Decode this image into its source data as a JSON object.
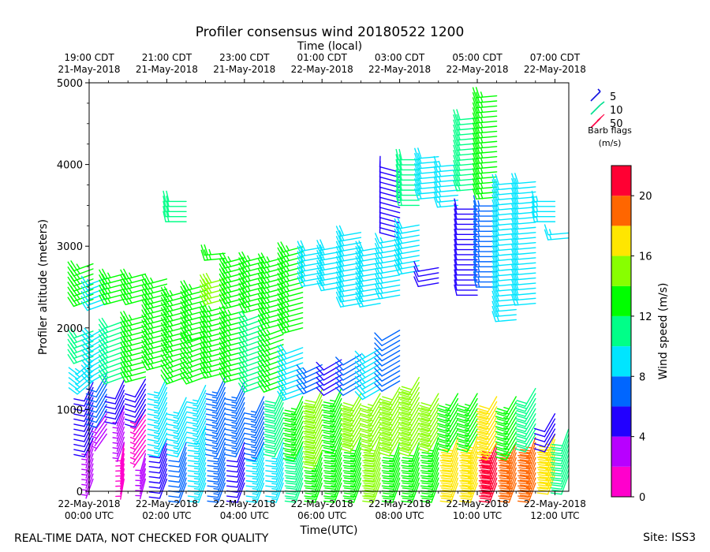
{
  "page": {
    "title": "Profiler consensus wind 20180522 1200",
    "footer_left": "REAL-TIME DATA, NOT CHECKED FOR QUALITY",
    "footer_right": "Site: ISS3"
  },
  "chart_data": {
    "type": "wind-barb",
    "title": "Profiler consensus wind 20180522 1200",
    "xlabel": "Time(UTC)",
    "x2label": "Time (local)",
    "ylabel": "Profiler altitude (meters)",
    "xlim": [
      0,
      12.4
    ],
    "ylim": [
      0,
      5000
    ],
    "y_ticks": [
      0,
      1000,
      2000,
      3000,
      4000,
      5000
    ],
    "x_ticks": [
      {
        "hour": 0,
        "line1": "22-May-2018",
        "line2": "00:00 UTC"
      },
      {
        "hour": 2,
        "line1": "22-May-2018",
        "line2": "02:00 UTC"
      },
      {
        "hour": 4,
        "line1": "22-May-2018",
        "line2": "04:00 UTC"
      },
      {
        "hour": 6,
        "line1": "22-May-2018",
        "line2": "06:00 UTC"
      },
      {
        "hour": 8,
        "line1": "22-May-2018",
        "line2": "08:00 UTC"
      },
      {
        "hour": 10,
        "line1": "22-May-2018",
        "line2": "10:00 UTC"
      },
      {
        "hour": 12,
        "line1": "22-May-2018",
        "line2": "12:00 UTC"
      }
    ],
    "x2_ticks": [
      {
        "hour": 0,
        "line1": "19:00 CDT",
        "line2": "21-May-2018"
      },
      {
        "hour": 2,
        "line1": "21:00 CDT",
        "line2": "21-May-2018"
      },
      {
        "hour": 4,
        "line1": "23:00 CDT",
        "line2": "21-May-2018"
      },
      {
        "hour": 6,
        "line1": "01:00 CDT",
        "line2": "22-May-2018"
      },
      {
        "hour": 8,
        "line1": "03:00 CDT",
        "line2": "22-May-2018"
      },
      {
        "hour": 10,
        "line1": "05:00 CDT",
        "line2": "22-May-2018"
      },
      {
        "hour": 12,
        "line1": "07:00 CDT",
        "line2": "22-May-2018"
      }
    ],
    "barb_legend": {
      "entries": [
        {
          "label": "5",
          "color": "#1010e0"
        },
        {
          "label": "10",
          "color": "#00e090"
        },
        {
          "label": "50",
          "color": "#ff0044"
        }
      ],
      "title_line1": "Barb flags",
      "title_line2": "(m/s)"
    },
    "colorbar": {
      "label": "Wind speed (m/s)",
      "range": [
        0,
        22
      ],
      "ticks": [
        0,
        4,
        8,
        12,
        16,
        20
      ],
      "bands": [
        {
          "from": 0,
          "to": 2,
          "color": "#ff00cc"
        },
        {
          "from": 2,
          "to": 4,
          "color": "#b800ff"
        },
        {
          "from": 4,
          "to": 6,
          "color": "#2200ff"
        },
        {
          "from": 6,
          "to": 8,
          "color": "#0066ff"
        },
        {
          "from": 8,
          "to": 10,
          "color": "#00e5ff"
        },
        {
          "from": 10,
          "to": 12,
          "color": "#00ff88"
        },
        {
          "from": 12,
          "to": 14,
          "color": "#00ff00"
        },
        {
          "from": 14,
          "to": 16,
          "color": "#88ff00"
        },
        {
          "from": 16,
          "to": 18,
          "color": "#ffe600"
        },
        {
          "from": 18,
          "to": 20,
          "color": "#ff6600"
        },
        {
          "from": 20,
          "to": 22,
          "color": "#ff0033"
        }
      ]
    },
    "profiles": [
      {
        "hour": 0.1,
        "layers": [
          {
            "from": 150,
            "to": 650,
            "speed": 3.2,
            "dir": 200
          },
          {
            "from": 650,
            "to": 1350,
            "speed": 5.2,
            "dir": 205
          },
          {
            "from": 1350,
            "to": 1650,
            "speed": 8.5,
            "dir": 230
          },
          {
            "from": 1650,
            "to": 2000,
            "speed": 10.5,
            "dir": 250
          },
          {
            "from": 2350,
            "to": 2800,
            "speed": 13,
            "dir": 250
          }
        ]
      },
      {
        "hour": 0.45,
        "layers": [
          {
            "from": 700,
            "to": 1000,
            "speed": 3,
            "dir": 215
          },
          {
            "from": 1000,
            "to": 1450,
            "speed": 6,
            "dir": 210
          },
          {
            "from": 1450,
            "to": 2050,
            "speed": 9.5,
            "dir": 240
          },
          {
            "from": 2300,
            "to": 2650,
            "speed": 8.6,
            "dir": 250
          }
        ]
      },
      {
        "hour": 0.9,
        "layers": [
          {
            "from": 150,
            "to": 600,
            "speed": 1.5,
            "dir": 190
          },
          {
            "from": 600,
            "to": 1050,
            "speed": 3,
            "dir": 200
          },
          {
            "from": 1050,
            "to": 1400,
            "speed": 5,
            "dir": 205
          },
          {
            "from": 1400,
            "to": 2100,
            "speed": 11,
            "dir": 250
          },
          {
            "from": 2350,
            "to": 2700,
            "speed": 13.5,
            "dir": 255
          }
        ]
      },
      {
        "hour": 1.45,
        "layers": [
          {
            "from": 150,
            "to": 500,
            "speed": 3,
            "dir": 195
          },
          {
            "from": 500,
            "to": 1000,
            "speed": 1.5,
            "dir": 215
          },
          {
            "from": 1000,
            "to": 1400,
            "speed": 5.5,
            "dir": 210
          },
          {
            "from": 1400,
            "to": 2200,
            "speed": 12.5,
            "dir": 255
          },
          {
            "from": 2350,
            "to": 2700,
            "speed": 12.8,
            "dir": 255
          }
        ]
      },
      {
        "hour": 2.0,
        "layers": [
          {
            "from": 150,
            "to": 650,
            "speed": 4.6,
            "dir": 200
          },
          {
            "from": 650,
            "to": 1400,
            "speed": 8.2,
            "dir": 205
          },
          {
            "from": 1550,
            "to": 2300,
            "speed": 12.4,
            "dir": 255
          },
          {
            "from": 2350,
            "to": 2650,
            "speed": 13.2,
            "dir": 255
          }
        ]
      },
      {
        "hour": 2.5,
        "layers": [
          {
            "from": 100,
            "to": 650,
            "speed": 6,
            "dir": 200
          },
          {
            "from": 650,
            "to": 1150,
            "speed": 8.5,
            "dir": 205
          },
          {
            "from": 1400,
            "to": 1700,
            "speed": 13,
            "dir": 250
          },
          {
            "from": 1700,
            "to": 2500,
            "speed": 12.2,
            "dir": 255
          },
          {
            "from": 3300,
            "to": 3550,
            "speed": 11,
            "dir": 270
          }
        ]
      },
      {
        "hour": 3.0,
        "layers": [
          {
            "from": 100,
            "to": 800,
            "speed": 8.4,
            "dir": 200
          },
          {
            "from": 800,
            "to": 1350,
            "speed": 8.8,
            "dir": 205
          },
          {
            "from": 1400,
            "to": 1900,
            "speed": 12.4,
            "dir": 250
          },
          {
            "from": 1900,
            "to": 2550,
            "speed": 13,
            "dir": 255
          }
        ]
      },
      {
        "hour": 3.5,
        "layers": [
          {
            "from": 100,
            "to": 650,
            "speed": 6.5,
            "dir": 200
          },
          {
            "from": 650,
            "to": 1400,
            "speed": 6.8,
            "dir": 205
          },
          {
            "from": 1450,
            "to": 2300,
            "speed": 12.4,
            "dir": 255
          },
          {
            "from": 2350,
            "to": 2600,
            "speed": 14.5,
            "dir": 255
          },
          {
            "from": 2850,
            "to": 2950,
            "speed": 12.5,
            "dir": 265
          }
        ]
      },
      {
        "hour": 4.0,
        "layers": [
          {
            "from": 100,
            "to": 650,
            "speed": 4.5,
            "dir": 200
          },
          {
            "from": 650,
            "to": 1350,
            "speed": 7,
            "dir": 205
          },
          {
            "from": 1400,
            "to": 2250,
            "speed": 12.6,
            "dir": 255
          },
          {
            "from": 2300,
            "to": 2900,
            "speed": 13.6,
            "dir": 255
          }
        ]
      },
      {
        "hour": 4.5,
        "layers": [
          {
            "from": 100,
            "to": 600,
            "speed": 8.8,
            "dir": 200
          },
          {
            "from": 600,
            "to": 1200,
            "speed": 7,
            "dir": 205
          },
          {
            "from": 1300,
            "to": 2200,
            "speed": 11.5,
            "dir": 250
          },
          {
            "from": 2250,
            "to": 2900,
            "speed": 13.2,
            "dir": 255
          }
        ]
      },
      {
        "hour": 5.0,
        "layers": [
          {
            "from": 100,
            "to": 650,
            "speed": 8.6,
            "dir": 200
          },
          {
            "from": 650,
            "to": 1300,
            "speed": 10.5,
            "dir": 205
          },
          {
            "from": 1300,
            "to": 2000,
            "speed": 12.8,
            "dir": 250
          },
          {
            "from": 2050,
            "to": 2900,
            "speed": 13.4,
            "dir": 255
          }
        ]
      },
      {
        "hour": 5.5,
        "layers": [
          {
            "from": 100,
            "to": 600,
            "speed": 11,
            "dir": 200
          },
          {
            "from": 600,
            "to": 1200,
            "speed": 13.4,
            "dir": 205
          },
          {
            "from": 1200,
            "to": 1800,
            "speed": 9.5,
            "dir": 250
          },
          {
            "from": 2000,
            "to": 3000,
            "speed": 13.6,
            "dir": 255
          }
        ]
      },
      {
        "hour": 6.0,
        "layers": [
          {
            "from": 100,
            "to": 500,
            "speed": 12.6,
            "dir": 200
          },
          {
            "from": 500,
            "to": 1250,
            "speed": 14.2,
            "dir": 205
          },
          {
            "from": 1300,
            "to": 1550,
            "speed": 7,
            "dir": 245
          },
          {
            "from": 2550,
            "to": 3000,
            "speed": 9.2,
            "dir": 260
          }
        ]
      },
      {
        "hour": 6.5,
        "layers": [
          {
            "from": 100,
            "to": 700,
            "speed": 13.2,
            "dir": 200
          },
          {
            "from": 700,
            "to": 1300,
            "speed": 13.8,
            "dir": 205
          },
          {
            "from": 1300,
            "to": 1650,
            "speed": 5.5,
            "dir": 240
          },
          {
            "from": 2500,
            "to": 3000,
            "speed": 9.4,
            "dir": 260
          }
        ]
      },
      {
        "hour": 7.0,
        "layers": [
          {
            "from": 100,
            "to": 700,
            "speed": 13.5,
            "dir": 200
          },
          {
            "from": 700,
            "to": 1200,
            "speed": 14.5,
            "dir": 210
          },
          {
            "from": 1300,
            "to": 1700,
            "speed": 6,
            "dir": 240
          },
          {
            "from": 2300,
            "to": 3200,
            "speed": 9.2,
            "dir": 260
          }
        ]
      },
      {
        "hour": 7.5,
        "layers": [
          {
            "from": 100,
            "to": 700,
            "speed": 15,
            "dir": 200
          },
          {
            "from": 700,
            "to": 1200,
            "speed": 14,
            "dir": 210
          },
          {
            "from": 1250,
            "to": 1750,
            "speed": 8.6,
            "dir": 240
          },
          {
            "from": 2300,
            "to": 3000,
            "speed": 9.5,
            "dir": 260
          }
        ]
      },
      {
        "hour": 8.0,
        "layers": [
          {
            "from": 100,
            "to": 650,
            "speed": 13.6,
            "dir": 200
          },
          {
            "from": 650,
            "to": 1300,
            "speed": 14.8,
            "dir": 210
          },
          {
            "from": 1350,
            "to": 2000,
            "speed": 6,
            "dir": 240
          },
          {
            "from": 2400,
            "to": 3100,
            "speed": 9,
            "dir": 260
          },
          {
            "from": 3100,
            "to": 3950,
            "speed": 5,
            "dir": 285
          }
        ]
      },
      {
        "hour": 8.5,
        "layers": [
          {
            "from": 100,
            "to": 650,
            "speed": 13.4,
            "dir": 200
          },
          {
            "from": 650,
            "to": 1400,
            "speed": 14.4,
            "dir": 210
          },
          {
            "from": 2700,
            "to": 3300,
            "speed": 9.2,
            "dir": 260
          },
          {
            "from": 3500,
            "to": 4100,
            "speed": 11,
            "dir": 270
          }
        ]
      },
      {
        "hour": 9.0,
        "layers": [
          {
            "from": 100,
            "to": 700,
            "speed": 13.8,
            "dir": 200
          },
          {
            "from": 700,
            "to": 1200,
            "speed": 14.6,
            "dir": 210
          },
          {
            "from": 2550,
            "to": 2750,
            "speed": 5.5,
            "dir": 260
          },
          {
            "from": 3600,
            "to": 4100,
            "speed": 9.5,
            "dir": 265
          }
        ]
      },
      {
        "hour": 9.5,
        "layers": [
          {
            "from": 100,
            "to": 700,
            "speed": 16.5,
            "dir": 200
          },
          {
            "from": 700,
            "to": 1200,
            "speed": 13.5,
            "dir": 210
          },
          {
            "from": 3500,
            "to": 4000,
            "speed": 9,
            "dir": 265
          }
        ]
      },
      {
        "hour": 10.0,
        "layers": [
          {
            "from": 100,
            "to": 700,
            "speed": 17,
            "dir": 200
          },
          {
            "from": 700,
            "to": 1200,
            "speed": 13.5,
            "dir": 210
          },
          {
            "from": 2400,
            "to": 3500,
            "speed": 5.5,
            "dir": 270
          },
          {
            "from": 3700,
            "to": 4600,
            "speed": 11.4,
            "dir": 265
          }
        ]
      },
      {
        "hour": 10.5,
        "layers": [
          {
            "from": 100,
            "to": 600,
            "speed": 20.5,
            "dir": 200
          },
          {
            "from": 600,
            "to": 1200,
            "speed": 16.5,
            "dir": 210
          },
          {
            "from": 2500,
            "to": 3500,
            "speed": 6.5,
            "dir": 270
          },
          {
            "from": 3600,
            "to": 4900,
            "speed": 13.5,
            "dir": 265
          }
        ]
      },
      {
        "hour": 11.0,
        "layers": [
          {
            "from": 100,
            "to": 600,
            "speed": 19,
            "dir": 200
          },
          {
            "from": 600,
            "to": 1200,
            "speed": 13,
            "dir": 210
          },
          {
            "from": 2100,
            "to": 3800,
            "speed": 9.5,
            "dir": 265
          }
        ]
      },
      {
        "hour": 11.5,
        "layers": [
          {
            "from": 100,
            "to": 700,
            "speed": 18.5,
            "dir": 200
          },
          {
            "from": 700,
            "to": 1300,
            "speed": 11,
            "dir": 210
          },
          {
            "from": 2300,
            "to": 3800,
            "speed": 9.6,
            "dir": 265
          }
        ]
      },
      {
        "hour": 12.0,
        "layers": [
          {
            "from": 200,
            "to": 700,
            "speed": 17,
            "dir": 200
          },
          {
            "from": 700,
            "to": 1000,
            "speed": 5,
            "dir": 210
          },
          {
            "from": 3300,
            "to": 3600,
            "speed": 8.4,
            "dir": 270
          }
        ]
      },
      {
        "hour": 12.35,
        "layers": [
          {
            "from": 200,
            "to": 800,
            "speed": 11,
            "dir": 200
          },
          {
            "from": 3100,
            "to": 3200,
            "speed": 9,
            "dir": 265
          }
        ]
      }
    ]
  }
}
